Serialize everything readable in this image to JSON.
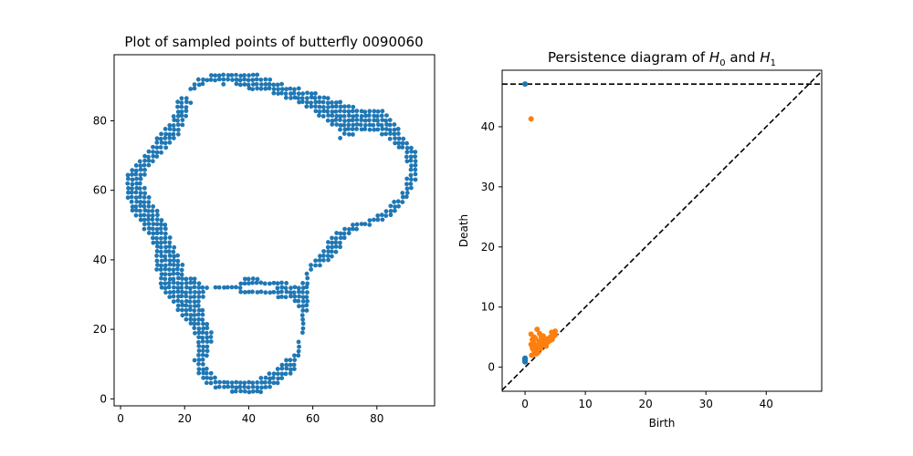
{
  "chart_data": [
    {
      "type": "scatter",
      "title": "Plot of sampled points of butterfly 0090060",
      "xlabel": "",
      "ylabel": "",
      "xlim": [
        -2,
        98
      ],
      "ylim": [
        -2,
        99
      ],
      "xticks": [
        0,
        20,
        40,
        60,
        80
      ],
      "yticks": [
        0,
        20,
        40,
        60,
        80
      ],
      "point_color": "#1f77b4",
      "grid": false,
      "point_spacing": 1.3,
      "outline": [
        [
          37,
          94.5
        ],
        [
          32,
          93.5
        ],
        [
          26,
          93
        ],
        [
          22,
          90.5
        ],
        [
          18,
          86
        ],
        [
          16,
          80
        ],
        [
          12,
          76
        ],
        [
          8,
          71
        ],
        [
          4,
          67
        ],
        [
          2,
          64
        ],
        [
          1.5,
          59
        ],
        [
          3,
          55
        ],
        [
          5,
          52
        ],
        [
          8,
          48
        ],
        [
          10,
          44
        ],
        [
          11,
          38
        ],
        [
          12,
          33
        ],
        [
          15,
          29
        ],
        [
          18,
          25
        ],
        [
          22,
          21
        ],
        [
          24,
          16
        ],
        [
          23,
          11
        ],
        [
          24,
          7
        ],
        [
          27,
          4
        ],
        [
          32,
          2.5
        ],
        [
          37,
          1.5
        ],
        [
          42,
          1.2
        ],
        [
          46,
          2.5
        ],
        [
          50,
          5
        ],
        [
          54,
          8
        ],
        [
          56,
          12
        ],
        [
          57,
          18
        ],
        [
          58,
          24
        ],
        [
          59,
          30
        ],
        [
          59,
          36
        ],
        [
          61,
          38
        ],
        [
          64,
          39
        ],
        [
          67,
          41
        ],
        [
          69,
          44
        ],
        [
          71,
          47
        ],
        [
          74,
          49
        ],
        [
          78,
          50
        ],
        [
          82,
          51
        ],
        [
          86,
          54
        ],
        [
          89,
          57
        ],
        [
          91,
          61
        ],
        [
          93,
          65
        ],
        [
          93,
          69
        ],
        [
          92,
          72
        ],
        [
          88,
          76
        ],
        [
          85,
          80
        ],
        [
          82,
          83
        ],
        [
          76,
          83
        ],
        [
          71,
          85
        ],
        [
          66,
          86
        ],
        [
          61,
          88
        ],
        [
          55,
          89.5
        ],
        [
          49,
          91
        ],
        [
          43,
          93.5
        ]
      ],
      "inner_outline": [
        [
          34,
          91
        ],
        [
          29,
          89.5
        ],
        [
          25,
          88
        ],
        [
          22,
          85
        ],
        [
          20,
          80
        ],
        [
          18,
          75
        ],
        [
          15,
          72
        ],
        [
          11,
          69
        ],
        [
          8,
          66
        ],
        [
          7,
          62
        ],
        [
          9,
          58
        ],
        [
          12,
          54
        ],
        [
          14,
          50
        ],
        [
          16,
          45
        ],
        [
          19,
          40
        ],
        [
          23,
          35
        ],
        [
          28,
          32
        ],
        [
          35,
          31
        ],
        [
          43,
          30
        ],
        [
          50,
          29
        ],
        [
          55,
          28
        ],
        [
          56,
          24
        ],
        [
          56,
          18
        ],
        [
          54,
          13
        ],
        [
          49,
          9
        ],
        [
          43,
          6
        ],
        [
          36,
          5
        ],
        [
          30,
          6
        ],
        [
          27,
          9
        ],
        [
          27,
          13
        ],
        [
          29,
          18
        ],
        [
          27,
          22
        ],
        [
          25,
          28
        ],
        [
          27,
          31
        ],
        [
          32,
          34
        ],
        [
          40,
          35
        ],
        [
          48,
          34
        ],
        [
          55,
          33
        ],
        [
          57,
          34
        ],
        [
          59,
          38
        ],
        [
          62,
          42
        ],
        [
          64,
          44
        ],
        [
          66,
          47
        ],
        [
          70,
          49
        ],
        [
          74,
          51
        ],
        [
          79,
          52
        ],
        [
          83,
          55
        ],
        [
          87,
          58
        ],
        [
          89,
          62
        ],
        [
          90,
          66
        ],
        [
          89,
          70
        ],
        [
          86,
          73
        ],
        [
          82,
          76
        ],
        [
          78,
          77
        ],
        [
          73,
          76
        ],
        [
          69,
          75
        ],
        [
          66,
          75
        ],
        [
          62,
          79
        ],
        [
          58,
          84
        ],
        [
          52,
          86.5
        ],
        [
          46,
          88
        ],
        [
          40,
          89
        ]
      ],
      "grains": 2500
    },
    {
      "type": "scatter",
      "title": "Persistence diagram of H0 and H1",
      "title_parts": [
        "Persistence diagram of ",
        "H",
        "0",
        " and ",
        "H",
        "1"
      ],
      "xlabel": "Birth",
      "ylabel": "Death",
      "xlim": [
        -3.8,
        49.2
      ],
      "ylim": [
        -4,
        49.4
      ],
      "xticks": [
        0,
        10,
        20,
        30,
        40
      ],
      "yticks": [
        0,
        10,
        20,
        30,
        40
      ],
      "infinity_line": 47.1,
      "series": [
        {
          "name": "H0",
          "color": "#1f77b4",
          "points": [
            [
              0,
              47.1
            ],
            [
              0,
              1.2
            ],
            [
              0,
              1.0
            ],
            [
              0,
              1.4
            ],
            [
              0,
              0.9
            ],
            [
              0,
              1.1
            ],
            [
              0,
              1.3
            ],
            [
              0,
              1.5
            ],
            [
              0,
              0.95
            ],
            [
              0,
              1.05
            ]
          ]
        },
        {
          "name": "H1",
          "color": "#ff7f0e",
          "points": [
            [
              1,
              41.3
            ],
            [
              1,
              5.5
            ],
            [
              2,
              6.3
            ],
            [
              1.2,
              4.6
            ],
            [
              1.5,
              3.5
            ],
            [
              1.3,
              3.0
            ],
            [
              1.6,
              2.5
            ],
            [
              1.1,
              2.0
            ],
            [
              1.8,
              2.2
            ],
            [
              2,
              2.8
            ],
            [
              2.2,
              3.3
            ],
            [
              2.5,
              3.9
            ],
            [
              2.8,
              4.5
            ],
            [
              3,
              5.2
            ],
            [
              3.3,
              4.0
            ],
            [
              3.5,
              3.5
            ],
            [
              3.8,
              4.2
            ],
            [
              4,
              4.8
            ],
            [
              4.2,
              5.0
            ],
            [
              4.5,
              4.6
            ],
            [
              4.8,
              5.2
            ],
            [
              5,
              6.0
            ],
            [
              5,
              5.4
            ],
            [
              2.4,
              5.6
            ],
            [
              1.4,
              4.0
            ],
            [
              1.7,
              4.8
            ],
            [
              2.6,
              3.1
            ],
            [
              3.1,
              3.7
            ],
            [
              2.1,
              2.4
            ],
            [
              2.9,
              4.0
            ],
            [
              1.9,
              3.6
            ],
            [
              3.6,
              4.7
            ],
            [
              4.4,
              5.8
            ],
            [
              1.2,
              3.3
            ],
            [
              2.3,
              4.3
            ],
            [
              1.5,
              5.0
            ],
            [
              1.0,
              3.8
            ],
            [
              2.7,
              5.0
            ],
            [
              3.2,
              4.4
            ],
            [
              4.1,
              4.4
            ]
          ]
        }
      ],
      "grid": false
    }
  ]
}
